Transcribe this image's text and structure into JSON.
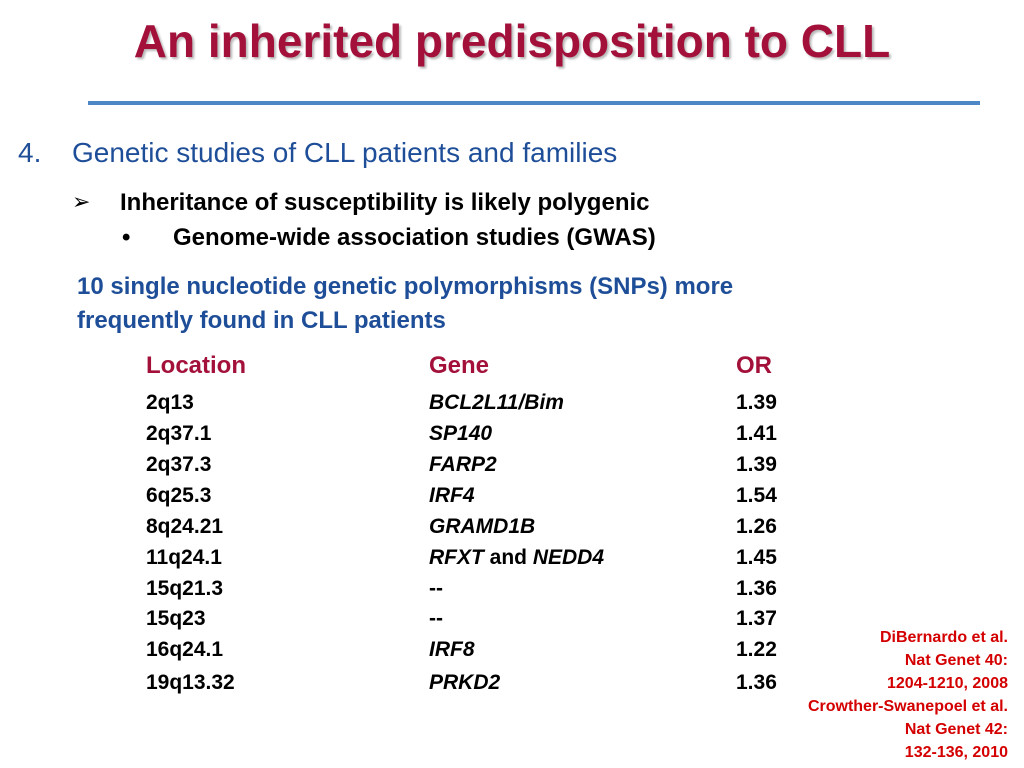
{
  "title": "An inherited predisposition to CLL",
  "section": {
    "number": "4.",
    "heading": "Genetic studies of CLL patients and families",
    "sub_bullet_glyph": "➢",
    "sub_point": "Inheritance of susceptibility is likely polygenic",
    "dot_bullet_glyph": "•",
    "sub_sub_point": "Genome-wide association studies (GWAS)",
    "intro_line1": "10 single nucleotide genetic polymorphisms (SNPs) more",
    "intro_line2": "frequently found in CLL patients"
  },
  "table": {
    "headers": {
      "location": "Location",
      "gene": "Gene",
      "or": "OR"
    },
    "rows": [
      {
        "location": "2q13",
        "gene": "BCL2L11/Bim",
        "gene_conj": "",
        "gene2": "",
        "or": "1.39"
      },
      {
        "location": "2q37.1",
        "gene": "SP140",
        "gene_conj": "",
        "gene2": "",
        "or": "1.41"
      },
      {
        "location": "2q37.3",
        "gene": "FARP2",
        "gene_conj": "",
        "gene2": "",
        "or": "1.39"
      },
      {
        "location": "6q25.3",
        "gene": "IRF4",
        "gene_conj": "",
        "gene2": "",
        "or": "1.54"
      },
      {
        "location": "8q24.21",
        "gene": "GRAMD1B",
        "gene_conj": "",
        "gene2": "",
        "or": "1.26"
      },
      {
        "location": "11q24.1",
        "gene": "RFXT",
        "gene_conj": " and ",
        "gene2": "NEDD4",
        "or": "1.45"
      },
      {
        "location": "15q21.3",
        "gene": "--",
        "gene_conj": "",
        "gene2": "",
        "or": "1.36"
      },
      {
        "location": "15q23",
        "gene": "--",
        "gene_conj": "",
        "gene2": "",
        "or": "1.37"
      },
      {
        "location": "16q24.1",
        "gene": "IRF8",
        "gene_conj": "",
        "gene2": "",
        "or": "1.22"
      },
      {
        "location": "19q13.32",
        "gene": "PRKD2",
        "gene_conj": "",
        "gene2": "",
        "or": "1.36"
      }
    ]
  },
  "references": [
    "DiBernardo et al.",
    "Nat Genet 40:",
    "1204-1210, 2008",
    "Crowther-Swanepoel et al.",
    "Nat Genet 42:",
    "132-136, 2010"
  ],
  "colors": {
    "title": "#a3113b",
    "heading": "#1f4e99",
    "rule": "#4f86c6",
    "reference": "#d40000"
  }
}
